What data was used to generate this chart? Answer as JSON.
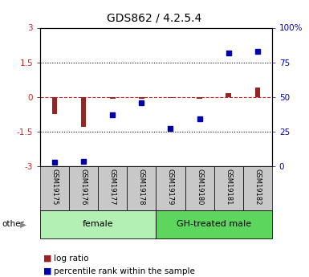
{
  "title": "GDS862 / 4.2.5.4",
  "samples": [
    "GSM19175",
    "GSM19176",
    "GSM19177",
    "GSM19178",
    "GSM19179",
    "GSM19180",
    "GSM19181",
    "GSM19182"
  ],
  "log_ratio": [
    -0.75,
    -1.3,
    -0.07,
    -0.08,
    -0.05,
    -0.07,
    0.18,
    0.42
  ],
  "percentile_rank": [
    3,
    3.5,
    37,
    46,
    27,
    34,
    82,
    83
  ],
  "groups": [
    {
      "label": "female",
      "start": 0,
      "end": 4,
      "color": "#b3f0b3"
    },
    {
      "label": "GH-treated male",
      "start": 4,
      "end": 8,
      "color": "#5cd65c"
    }
  ],
  "ylim_left": [
    -3,
    3
  ],
  "ylim_right": [
    0,
    100
  ],
  "yticks_left": [
    -3,
    -1.5,
    0,
    1.5,
    3
  ],
  "ytick_labels_left": [
    "-3",
    "-1.5",
    "0",
    "1.5",
    "3"
  ],
  "yticks_right": [
    0,
    25,
    50,
    75,
    100
  ],
  "ytick_labels_right": [
    "0",
    "25",
    "50",
    "75",
    "100%"
  ],
  "bar_color": "#992222",
  "dot_color": "#0000AA",
  "hline_color": "#CC2222",
  "dotted_color": "#000000",
  "other_label": "other",
  "legend_log_ratio": "log ratio",
  "legend_percentile": "percentile rank within the sample",
  "background_color": "#ffffff",
  "plot_bg_color": "#ffffff",
  "sample_box_color": "#C8C8C8",
  "title_fontsize": 10,
  "axis_fontsize": 7.5,
  "sample_fontsize": 6,
  "group_fontsize": 8,
  "legend_fontsize": 7.5
}
